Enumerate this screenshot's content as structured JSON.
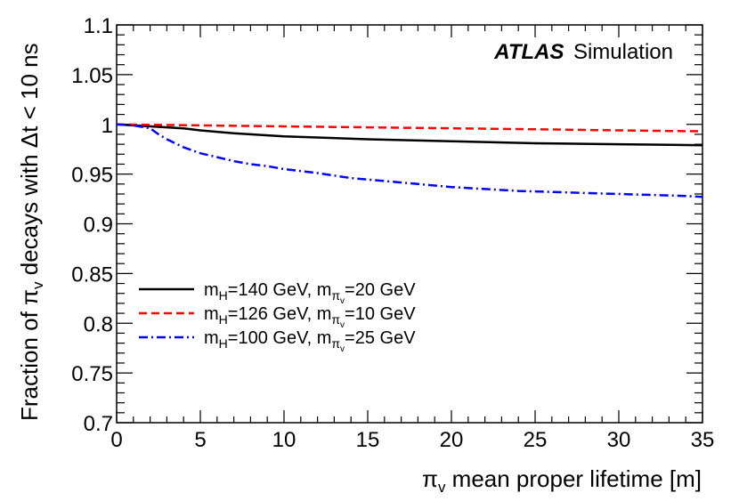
{
  "chart_data": {
    "type": "line",
    "title": "",
    "xlabel": "π_v mean proper lifetime [m]",
    "ylabel": "Fraction of π_v decays with Δt < 10 ns",
    "xlabel_parts": {
      "symbol": "π",
      "sub": "v",
      "rest": " mean proper lifetime [m]"
    },
    "ylabel_parts": {
      "pre": "Fraction of ",
      "symbol": "π",
      "sub": "v",
      "rest": " decays with Δt < 10 ns"
    },
    "xlim": [
      0,
      35
    ],
    "ylim": [
      0.7,
      1.1
    ],
    "x_ticks": [
      0,
      5,
      10,
      15,
      20,
      25,
      30,
      35
    ],
    "x_tick_labels": [
      "0",
      "5",
      "10",
      "15",
      "20",
      "25",
      "30",
      "35"
    ],
    "y_ticks": [
      0.7,
      0.75,
      0.8,
      0.85,
      0.9,
      0.95,
      1.0,
      1.05,
      1.1
    ],
    "y_tick_labels": [
      "0.7",
      "0.75",
      "0.8",
      "0.85",
      "0.9",
      "0.95",
      "1",
      "1.05",
      "1.1"
    ],
    "grid": false,
    "legend_position": "center-left",
    "annotation": {
      "bold": "ATLAS",
      "normal": "Simulation"
    },
    "series": [
      {
        "name": "m_H=140 GeV, m_πv=20 GeV",
        "label": {
          "m": "m",
          "h_sub": "H",
          "mid": "=140 GeV, m",
          "pi_sub": "π",
          "v_sub": "v",
          "end": "=20 GeV"
        },
        "color": "#000000",
        "dash": "solid",
        "x": [
          0,
          1,
          2,
          3,
          4,
          5,
          7,
          10,
          15,
          20,
          25,
          30,
          35
        ],
        "y": [
          1.0,
          0.999,
          0.998,
          0.997,
          0.996,
          0.994,
          0.991,
          0.988,
          0.985,
          0.983,
          0.981,
          0.98,
          0.979
        ]
      },
      {
        "name": "m_H=126 GeV, m_πv=10 GeV",
        "label": {
          "m": "m",
          "h_sub": "H",
          "mid": "=126 GeV, m",
          "pi_sub": "π",
          "v_sub": "v",
          "end": "=10 GeV"
        },
        "color": "#ff0000",
        "dash": "9,5",
        "x": [
          0,
          5,
          10,
          15,
          20,
          25,
          30,
          35
        ],
        "y": [
          1.0,
          0.999,
          0.998,
          0.997,
          0.996,
          0.995,
          0.994,
          0.993
        ]
      },
      {
        "name": "m_H=100 GeV, m_πv=25 GeV",
        "label": {
          "m": "m",
          "h_sub": "H",
          "mid": "=100 GeV, m",
          "pi_sub": "π",
          "v_sub": "v",
          "end": "=25 GeV"
        },
        "color": "#0000ff",
        "dash": "10,4,2,4",
        "x": [
          0,
          1,
          2,
          2.5,
          3,
          4,
          5,
          6,
          7,
          8,
          9,
          10,
          12,
          14,
          16,
          18,
          20,
          22,
          24,
          26,
          28,
          30,
          32,
          34,
          35
        ],
        "y": [
          1.0,
          0.999,
          0.996,
          0.99,
          0.985,
          0.977,
          0.971,
          0.967,
          0.963,
          0.96,
          0.958,
          0.955,
          0.951,
          0.946,
          0.943,
          0.94,
          0.937,
          0.935,
          0.933,
          0.932,
          0.931,
          0.93,
          0.929,
          0.928,
          0.927
        ]
      }
    ]
  }
}
